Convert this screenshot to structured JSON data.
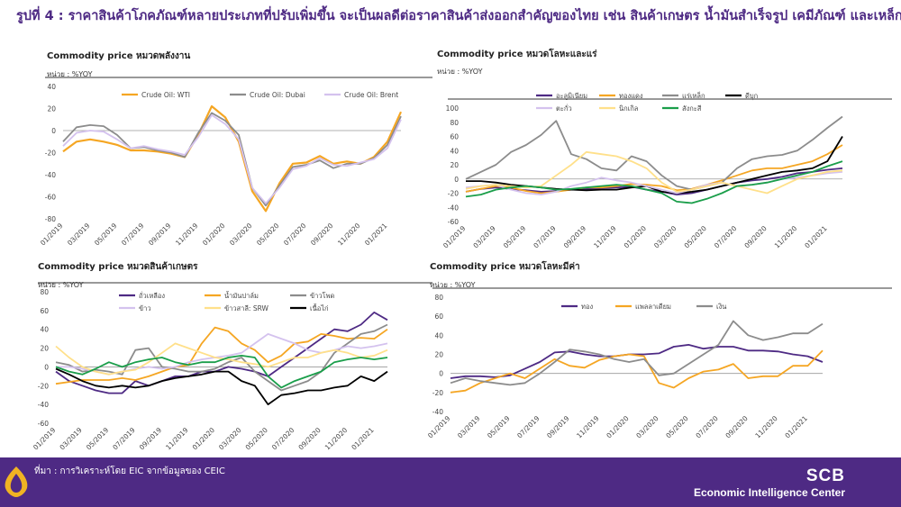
{
  "page": {
    "title": "รูปที่ 4 : ราคาสินค้าโภคภัณฑ์หลายประเภทที่ปรับเพิ่มขึ้น จะเป็นผลดีต่อราคาสินค้าส่งออกสำคัญของไทย เช่น สินค้าเกษตร น้ำมันสำเร็จรูป เคมีภัณฑ์ และเหล็ก เป็นต้น",
    "source": "ที่มา : การวิเคราะห์โดย EIC จากข้อมูลของ   CEIC",
    "brand": "SCB",
    "brand_sub": "Economic Intelligence Center",
    "brand_color": "#4e2a84",
    "logo_color": "#f0b323"
  },
  "chart_data": [
    {
      "type": "line",
      "title": "Commodity price หมวดพลังงาน",
      "unit": "หน่วย : %YOY",
      "ylim": [
        -80,
        40
      ],
      "yticks": [
        -80,
        -60,
        -40,
        -20,
        0,
        20,
        40
      ],
      "xlabels": [
        "01/2019",
        "03/2019",
        "05/2019",
        "07/2019",
        "09/2019",
        "11/2019",
        "01/2020",
        "03/2020",
        "05/2020",
        "07/2020",
        "09/2020",
        "11/2020",
        "01/2021"
      ],
      "legend_cols": 3,
      "series": [
        {
          "name": "Crude Oil: WTI",
          "color": "#f5a623",
          "width": 2.2,
          "values": [
            -19,
            -10,
            -8,
            -10,
            -13,
            -18,
            -18,
            -19,
            -21,
            -24,
            -4,
            22,
            12,
            -10,
            -55,
            -73,
            -48,
            -30,
            -29,
            -23,
            -30,
            -28,
            -30,
            -24,
            -10,
            17
          ]
        },
        {
          "name": "Crude Oil: Dubai",
          "color": "#8c8c8c",
          "width": 1.8,
          "values": [
            -10,
            3,
            5,
            4,
            -4,
            -16,
            -15,
            -18,
            -20,
            -24,
            -2,
            16,
            9,
            -4,
            -52,
            -68,
            -50,
            -33,
            -31,
            -27,
            -34,
            -30,
            -30,
            -25,
            -13,
            13
          ]
        },
        {
          "name": "Crude Oil: Brent",
          "color": "#d4c2ee",
          "width": 1.8,
          "values": [
            -14,
            -2,
            0,
            -1,
            -8,
            -16,
            -14,
            -17,
            -19,
            -22,
            -6,
            14,
            6,
            -8,
            -52,
            -66,
            -52,
            -35,
            -32,
            -25,
            -31,
            -32,
            -29,
            -26,
            -16,
            10
          ]
        }
      ]
    },
    {
      "type": "line",
      "title": "Commodity price หมวดโลหะและแร่",
      "unit": "หน่วย : %YOY",
      "ylim": [
        -60,
        100
      ],
      "yticks": [
        -60,
        -40,
        -20,
        0,
        20,
        40,
        60,
        80,
        100
      ],
      "xlabels": [
        "01/2019",
        "03/2019",
        "05/2019",
        "07/2019",
        "09/2019",
        "11/2019",
        "01/2020",
        "03/2020",
        "05/2020",
        "07/2020",
        "09/2020",
        "11/2020",
        "01/2021"
      ],
      "legend_cols": 4,
      "series": [
        {
          "name": "อะลูมิเนียม",
          "color": "#4e2a84",
          "width": 1.8,
          "values": [
            -18,
            -14,
            -12,
            -14,
            -16,
            -18,
            -17,
            -15,
            -14,
            -13,
            -12,
            -11,
            -15,
            -18,
            -22,
            -20,
            -15,
            -10,
            -5,
            -2,
            0,
            3,
            8,
            10,
            13,
            15
          ]
        },
        {
          "name": "ทองแดง",
          "color": "#f5a623",
          "width": 1.8,
          "values": [
            -18,
            -14,
            -10,
            -12,
            -17,
            -20,
            -18,
            -15,
            -12,
            -12,
            -10,
            -7,
            -8,
            -10,
            -16,
            -14,
            -8,
            -2,
            5,
            12,
            15,
            15,
            20,
            25,
            35,
            48
          ]
        },
        {
          "name": "แร่เหล็ก",
          "color": "#8c8c8c",
          "width": 1.8,
          "values": [
            0,
            10,
            20,
            38,
            48,
            62,
            82,
            35,
            28,
            15,
            12,
            32,
            25,
            5,
            -10,
            -15,
            -10,
            -5,
            15,
            28,
            32,
            34,
            40,
            55,
            72,
            88
          ]
        },
        {
          "name": "ดีบุก",
          "color": "#000000",
          "width": 1.8,
          "values": [
            -3,
            -3,
            -5,
            -8,
            -10,
            -12,
            -14,
            -15,
            -16,
            -15,
            -15,
            -12,
            -10,
            -18,
            -20,
            -18,
            -15,
            -10,
            -5,
            0,
            5,
            10,
            12,
            15,
            25,
            60
          ]
        },
        {
          "name": "ตะกั่ว",
          "color": "#d4c2ee",
          "width": 1.8,
          "values": [
            -12,
            -10,
            -8,
            -15,
            -20,
            -22,
            -18,
            -10,
            -5,
            2,
            -2,
            -5,
            -10,
            -15,
            -20,
            -15,
            -8,
            -5,
            -10,
            -8,
            -5,
            0,
            2,
            5,
            8,
            10
          ]
        },
        {
          "name": "นิกเกิล",
          "color": "#ffe08a",
          "width": 1.8,
          "values": [
            -14,
            -10,
            -8,
            -10,
            -12,
            -10,
            5,
            20,
            38,
            35,
            32,
            25,
            15,
            -5,
            -18,
            -15,
            -10,
            -5,
            -10,
            -15,
            -20,
            -10,
            0,
            5,
            10,
            12
          ]
        },
        {
          "name": "สังกะสี",
          "color": "#1a9e4a",
          "width": 1.8,
          "values": [
            -25,
            -22,
            -15,
            -12,
            -10,
            -12,
            -15,
            -14,
            -12,
            -10,
            -8,
            -10,
            -15,
            -20,
            -32,
            -34,
            -28,
            -20,
            -10,
            -8,
            -5,
            0,
            5,
            10,
            18,
            25
          ]
        }
      ]
    },
    {
      "type": "line",
      "title": "Commodity price หมวดสินค้าเกษตร",
      "unit": "หน่วย : %YOY",
      "ylim": [
        -60,
        80
      ],
      "yticks": [
        -60,
        -40,
        -20,
        0,
        20,
        40,
        60,
        80
      ],
      "xlabels": [
        "01/2019",
        "03/2019",
        "05/2019",
        "07/2019",
        "09/2019",
        "11/2019",
        "01/2020",
        "03/2020",
        "05/2020",
        "07/2020",
        "09/2020",
        "11/2020",
        "01/2021"
      ],
      "legend_cols": 3,
      "series": [
        {
          "name": "ถั่วเหลือง",
          "color": "#4e2a84",
          "width": 1.8,
          "values": [
            -5,
            -15,
            -20,
            -25,
            -28,
            -28,
            -15,
            -20,
            -15,
            -10,
            -10,
            -5,
            -5,
            0,
            -2,
            -5,
            -10,
            0,
            10,
            20,
            30,
            40,
            38,
            45,
            58,
            50
          ]
        },
        {
          "name": "น้ำมันปาล์ม",
          "color": "#f5a623",
          "width": 1.8,
          "values": [
            -18,
            -16,
            -14,
            -14,
            -14,
            -12,
            -14,
            -10,
            -5,
            0,
            2,
            25,
            42,
            38,
            25,
            18,
            5,
            12,
            25,
            27,
            35,
            33,
            30,
            31,
            30,
            40
          ]
        },
        {
          "name": "ข้าวโพด",
          "color": "#8c8c8c",
          "width": 1.8,
          "values": [
            5,
            2,
            -5,
            -3,
            -5,
            -8,
            18,
            20,
            0,
            -2,
            -5,
            -5,
            -2,
            5,
            10,
            -5,
            -15,
            -25,
            -20,
            -15,
            -5,
            15,
            25,
            35,
            38,
            45
          ]
        },
        {
          "name": "ข้าว",
          "color": "#d4c2ee",
          "width": 1.8,
          "values": [
            0,
            0,
            -2,
            -5,
            -8,
            -5,
            -2,
            0,
            -2,
            0,
            5,
            8,
            10,
            12,
            15,
            25,
            35,
            30,
            25,
            18,
            15,
            18,
            22,
            20,
            22,
            25
          ]
        },
        {
          "name": "ข้าวสาลี: SRW",
          "color": "#ffe08a",
          "width": 1.8,
          "values": [
            22,
            10,
            0,
            -5,
            -8,
            -5,
            -3,
            5,
            15,
            25,
            20,
            15,
            10,
            8,
            5,
            3,
            0,
            5,
            10,
            10,
            15,
            18,
            15,
            10,
            12,
            18
          ]
        },
        {
          "name": "เนื้อไก่",
          "color": "#000000",
          "width": 1.8,
          "values": [
            -2,
            -8,
            -15,
            -20,
            -22,
            -20,
            -22,
            -20,
            -15,
            -12,
            -10,
            -8,
            -5,
            -5,
            -15,
            -20,
            -40,
            -30,
            -28,
            -25,
            -25,
            -22,
            -20,
            -10,
            -15,
            -5
          ]
        },
        {
          "name": "ยางแผ่นรมควัน",
          "color": "#1a9e4a",
          "width": 1.8,
          "values": [
            0,
            -5,
            -8,
            -2,
            5,
            0,
            5,
            8,
            10,
            5,
            2,
            5,
            5,
            10,
            12,
            10,
            -10,
            -22,
            -15,
            -10,
            -5,
            5,
            8,
            10,
            8,
            10
          ]
        }
      ]
    },
    {
      "type": "line",
      "title": "Commodity price หมวดโลหะมีค่า",
      "unit": "หน่วย : %YOY",
      "ylim": [
        -40,
        80
      ],
      "yticks": [
        -40,
        -20,
        0,
        20,
        40,
        60,
        80
      ],
      "xlabels": [
        "01/2019",
        "03/2019",
        "05/2019",
        "07/2019",
        "09/2019",
        "11/2019",
        "01/2020",
        "03/2020",
        "05/2020",
        "07/2020",
        "09/2020",
        "11/2020",
        "01/2021"
      ],
      "legend_cols": 3,
      "series": [
        {
          "name": "ทอง",
          "color": "#4e2a84",
          "width": 1.8,
          "values": [
            -5,
            -3,
            -3,
            -4,
            -2,
            5,
            12,
            22,
            23,
            20,
            18,
            18,
            20,
            20,
            21,
            28,
            30,
            26,
            28,
            28,
            24,
            24,
            23,
            20,
            18,
            12
          ]
        },
        {
          "name": "แพลลาเดียม",
          "color": "#f5a623",
          "width": 1.8,
          "values": [
            -20,
            -18,
            -10,
            -5,
            0,
            -5,
            5,
            15,
            8,
            6,
            14,
            18,
            20,
            18,
            -10,
            -15,
            -5,
            2,
            4,
            10,
            -5,
            -3,
            -3,
            8,
            8,
            24
          ]
        },
        {
          "name": "เงิน",
          "color": "#8c8c8c",
          "width": 1.8,
          "values": [
            -10,
            -5,
            -8,
            -10,
            -12,
            -10,
            0,
            12,
            25,
            23,
            20,
            15,
            12,
            15,
            -2,
            0,
            10,
            20,
            30,
            55,
            40,
            35,
            38,
            42,
            42,
            52
          ]
        }
      ]
    }
  ]
}
